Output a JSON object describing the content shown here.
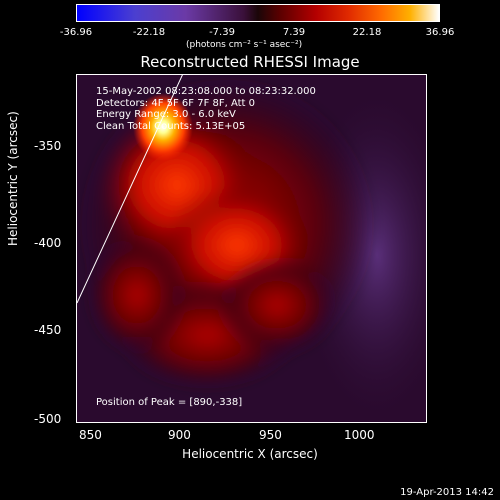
{
  "colorbar": {
    "ticks": [
      "-36.96",
      "-22.18",
      "-7.39",
      "7.39",
      "22.18",
      "36.96"
    ],
    "unit": "(photons cm⁻² s⁻¹ asec⁻²)"
  },
  "title": "Reconstructed RHESSI Image",
  "info": {
    "line1": "15-May-2002 08:23:08.000 to 08:23:32.000",
    "line2": "Detectors: 4F 5F 6F 7F 8F, Att 0",
    "line3": "Energy Range: 3.0 - 6.0 keV",
    "line4": "Clean    Total Counts: 5.13E+05"
  },
  "peak_label": "Position of Peak = [890,-338]",
  "axes": {
    "xlabel": "Heliocentric X (arcsec)",
    "ylabel": "Heliocentric Y (arcsec)",
    "xticks": [
      "850",
      "900",
      "950",
      "1000"
    ],
    "yticks": [
      "-350",
      "-400",
      "-450",
      "-500"
    ]
  },
  "footer_date": "19-Apr-2013 14:42",
  "colors": {
    "background": "#000000",
    "text": "#ffffff"
  }
}
